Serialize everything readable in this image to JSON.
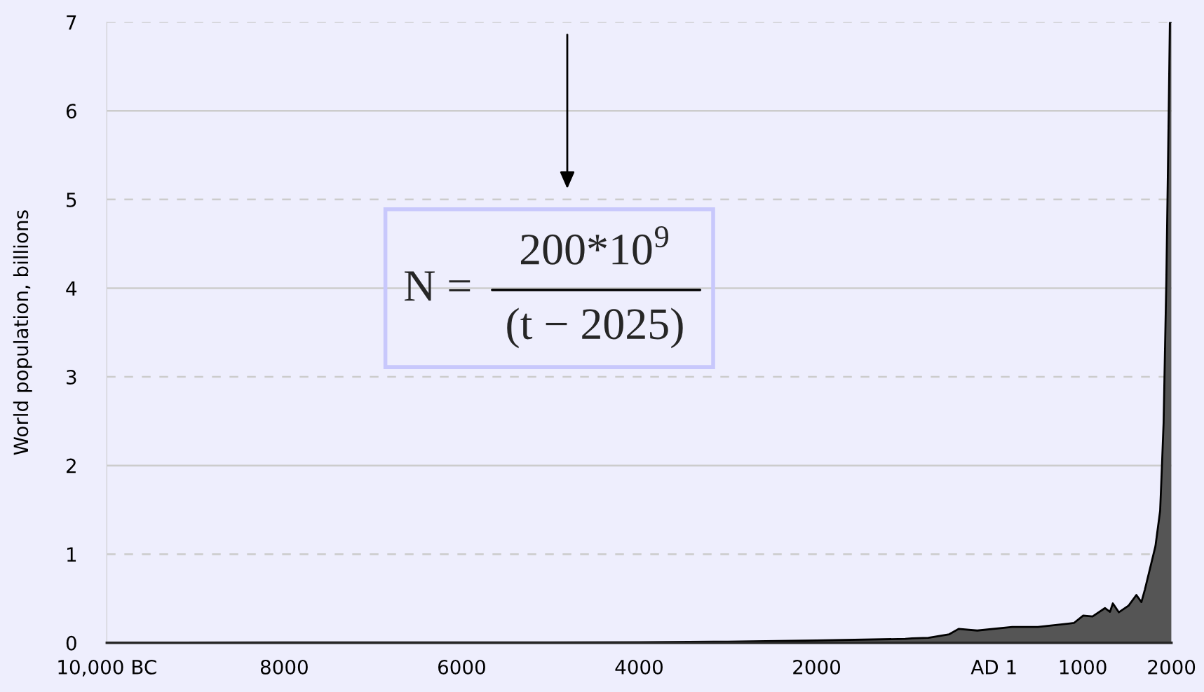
{
  "chart_data": {
    "type": "area",
    "ylabel": "World population, billions",
    "x": [
      -10000,
      -8000,
      -6000,
      -5000,
      -4000,
      -3000,
      -2000,
      -1000,
      -924,
      -740,
      -504,
      -399,
      -189,
      205,
      494,
      900,
      1005,
      1110,
      1250,
      1307,
      1339,
      1407,
      1517,
      1604,
      1661,
      1701,
      1773,
      1819,
      1872,
      1891,
      1911,
      1942,
      1970,
      1982,
      2000
    ],
    "series": [
      {
        "color": "#555555",
        "values": [
          0.004,
          0.005,
          0.005,
          0.005,
          0.007,
          0.014,
          0.027,
          0.045,
          0.052,
          0.057,
          0.097,
          0.158,
          0.139,
          0.18,
          0.18,
          0.224,
          0.308,
          0.298,
          0.392,
          0.35,
          0.445,
          0.345,
          0.42,
          0.54,
          0.46,
          0.605,
          0.9,
          1.09,
          1.49,
          1.96,
          2.48,
          4.09,
          6.07,
          7.0,
          7.0
        ]
      }
    ],
    "xlim": [
      -10000,
      2000
    ],
    "xticks": [
      {
        "value": -10000,
        "label": "10,000 BC"
      },
      {
        "value": -8000,
        "label": "8000"
      },
      {
        "value": -6000,
        "label": "6000"
      },
      {
        "value": -4000,
        "label": "4000"
      },
      {
        "value": -2000,
        "label": "2000"
      },
      {
        "value": 1,
        "label": "AD 1"
      },
      1000,
      2000
    ],
    "ylim": [
      0,
      7
    ],
    "yticks": [
      0,
      1,
      2,
      3,
      4,
      5,
      6,
      7
    ],
    "grid": "y",
    "annotations": [
      "N =",
      "200*10$^{9}$",
      "(t − 2025)"
    ]
  }
}
